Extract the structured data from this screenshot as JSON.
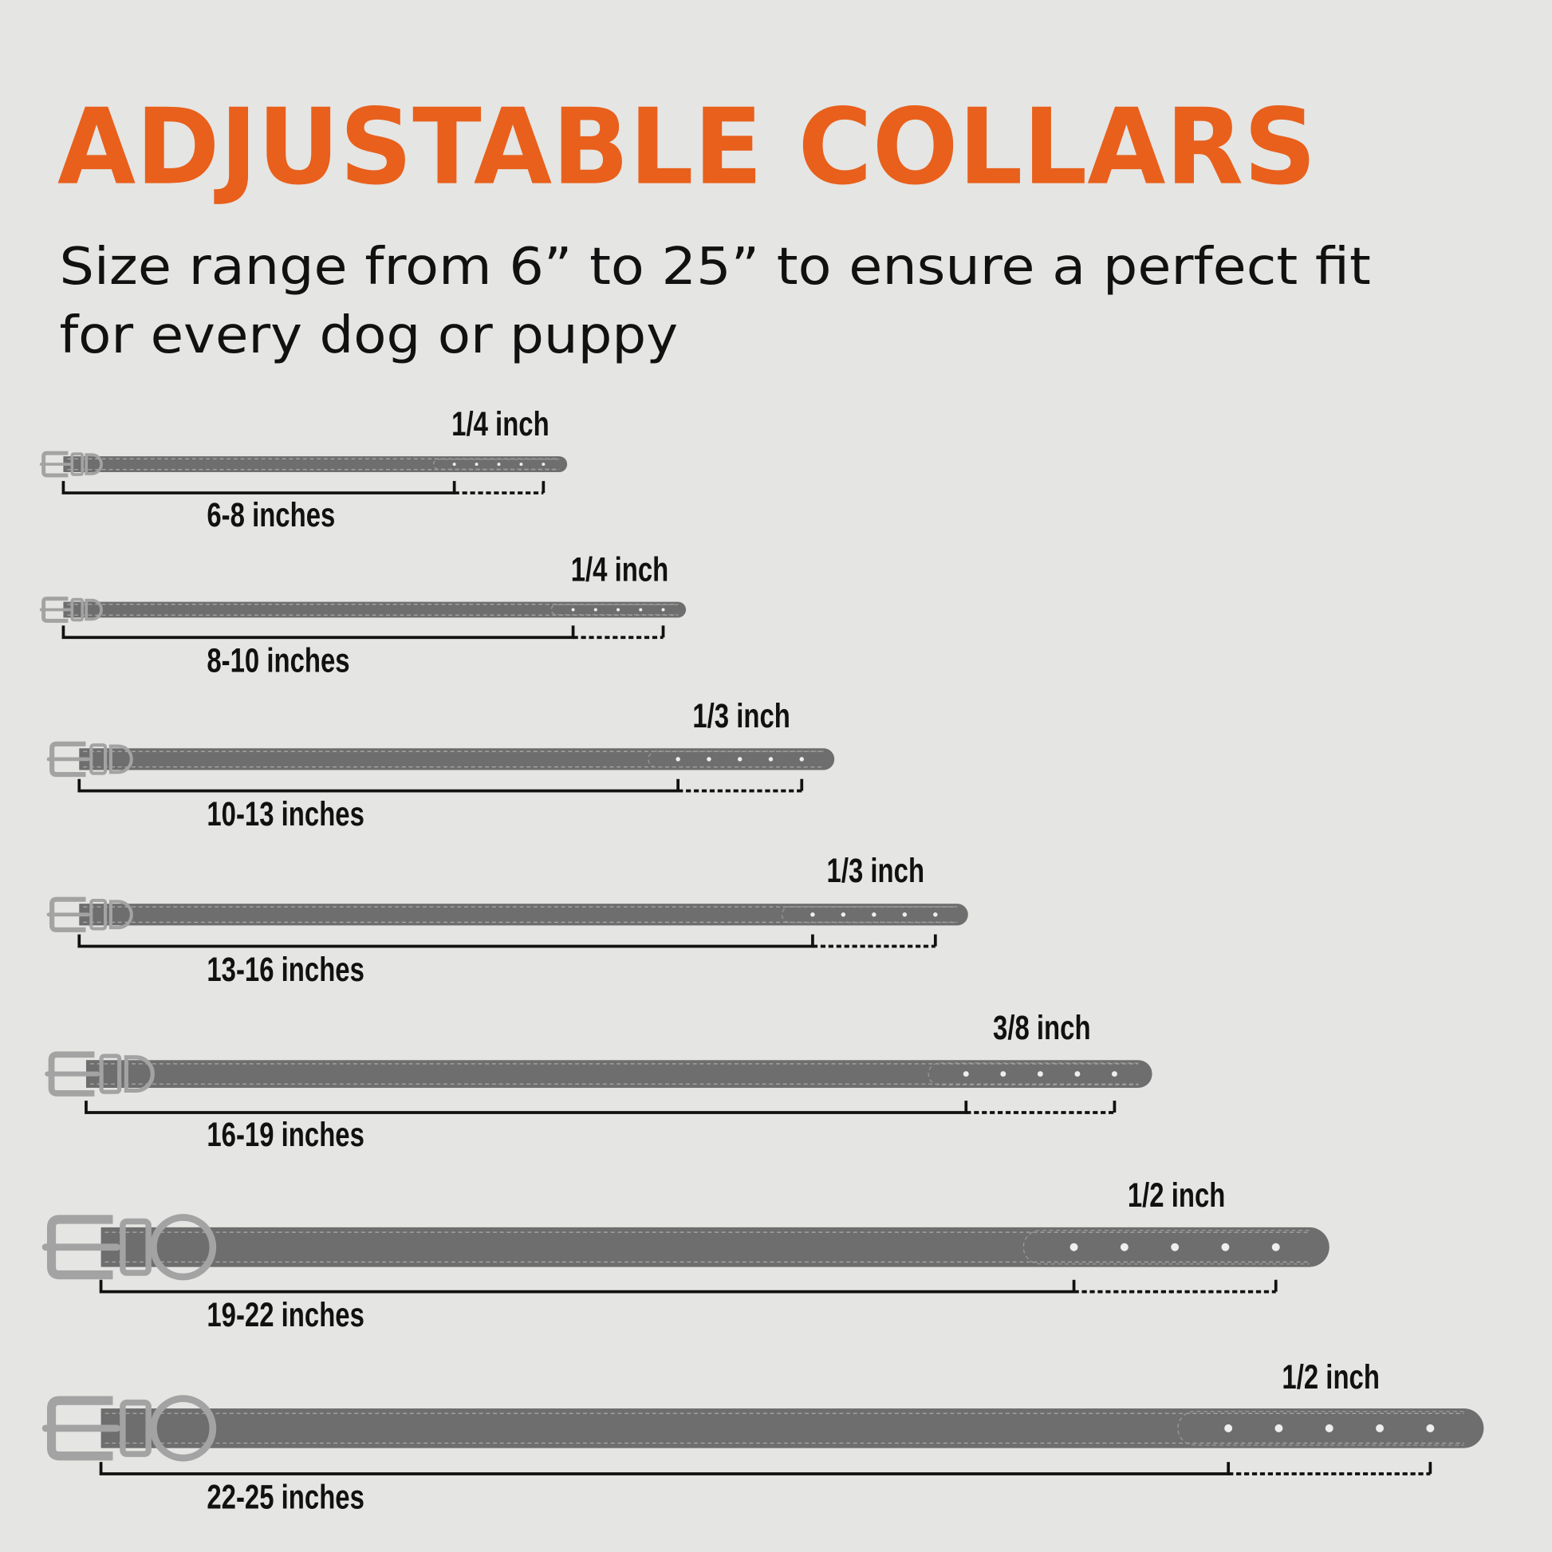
{
  "title": "ADJUSTABLE COLLARS",
  "subtitle_line1": "Size range from 6” to 25” to ensure a perfect fit",
  "subtitle_line2": "for every dog or puppy",
  "colors": {
    "accent": "#e8601c",
    "strap": "#6f6e6e",
    "hardware": "#a3a3a3",
    "background": "#e5e5e3"
  },
  "collars": [
    {
      "size": "6-8 inches",
      "adjust": "1/4 inch",
      "holes": 5
    },
    {
      "size": "8-10 inches",
      "adjust": "1/4 inch",
      "holes": 5
    },
    {
      "size": "10-13 inches",
      "adjust": "1/3 inch",
      "holes": 5
    },
    {
      "size": "13-16 inches",
      "adjust": "1/3 inch",
      "holes": 5
    },
    {
      "size": "16-19 inches",
      "adjust": "3/8 inch",
      "holes": 5
    },
    {
      "size": "19-22 inches",
      "adjust": "1/2 inch",
      "holes": 5
    },
    {
      "size": "22-25 inches",
      "adjust": "1/2 inch",
      "holes": 5
    }
  ]
}
